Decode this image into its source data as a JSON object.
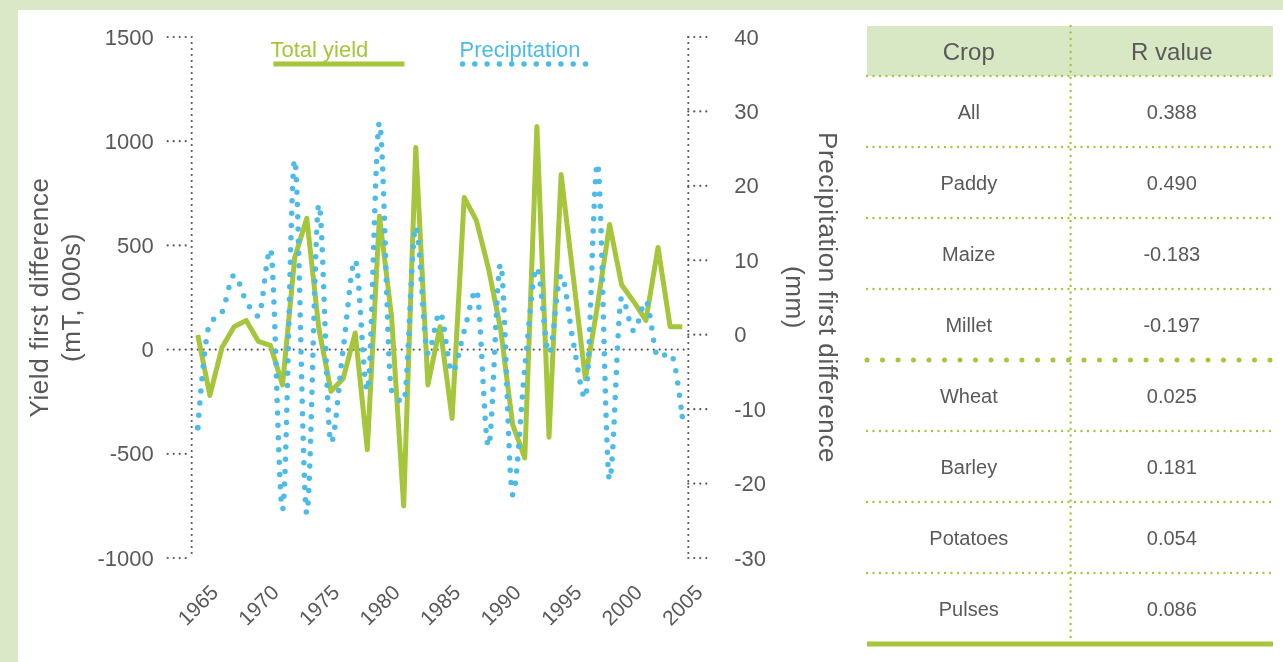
{
  "chart_data": [
    {
      "type": "line",
      "x": [
        1965,
        1966,
        1967,
        1968,
        1969,
        1970,
        1971,
        1972,
        1973,
        1974,
        1975,
        1976,
        1977,
        1978,
        1979,
        1980,
        1981,
        1982,
        1983,
        1984,
        1985,
        1986,
        1987,
        1988,
        1989,
        1990,
        1991,
        1992,
        1993,
        1994,
        1995,
        1996,
        1997,
        1998,
        1999,
        2000,
        2001,
        2002,
        2003,
        2004,
        2005
      ],
      "xlim": [
        1964.5,
        2005.5
      ],
      "xticks": [
        1965,
        1970,
        1975,
        1980,
        1985,
        1990,
        1995,
        2000,
        2005
      ],
      "ylim": [
        -1000,
        1500
      ],
      "yticks": [
        -1000,
        -500,
        0,
        500,
        1000,
        1500
      ],
      "y2lim": [
        -30,
        40
      ],
      "y2ticks": [
        -30,
        -20,
        -10,
        0,
        10,
        20,
        30,
        40
      ],
      "ylabel": "Yield first difference\n(mT, 000s)",
      "y2label": "Precipitation first difference\n(mm)",
      "legend": "top",
      "series": [
        {
          "name": "Total yield",
          "color": "#a5c63b",
          "line_style": "solid",
          "values": [
            70,
            -220,
            10,
            110,
            140,
            40,
            20,
            -170,
            440,
            630,
            100,
            -200,
            -140,
            80,
            -480,
            640,
            160,
            -750,
            970,
            -170,
            110,
            -330,
            730,
            620,
            390,
            100,
            -360,
            -520,
            1070,
            -420,
            840,
            350,
            -140,
            210,
            600,
            310,
            230,
            140,
            490,
            110,
            110
          ]
        },
        {
          "name": "Precipitation",
          "color": "#4cbbe8",
          "line_style": "dotted",
          "axis": "y2",
          "values": [
            -12.5,
            1.5,
            3,
            8,
            4.5,
            2.5,
            11.5,
            -23.5,
            23.5,
            -24,
            17.5,
            -14.5,
            -2,
            10,
            -7.5,
            28.5,
            -7.5,
            -9,
            14.5,
            -2.5,
            3,
            -5,
            0.5,
            6,
            -15,
            9.5,
            -21.5,
            -4.5,
            9,
            -2.5,
            8,
            -1,
            -8.5,
            23,
            -19.5,
            5,
            0.5,
            4.5,
            -3,
            -2.5,
            -11
          ]
        }
      ]
    },
    {
      "type": "other",
      "xlabel": "Crop",
      "ylabel": "R value",
      "categories": [
        "All",
        "Paddy",
        "Maize",
        "Millet",
        "Wheat",
        "Barley",
        "Potatoes",
        "Pulses"
      ],
      "values": [
        0.388,
        0.49,
        -0.183,
        -0.197,
        0.025,
        0.181,
        0.054,
        0.086
      ],
      "value_labels": [
        "0.388",
        "0.490",
        "-0.183",
        "-0.197",
        "0.025",
        "0.181",
        "0.054",
        "0.086"
      ]
    }
  ]
}
